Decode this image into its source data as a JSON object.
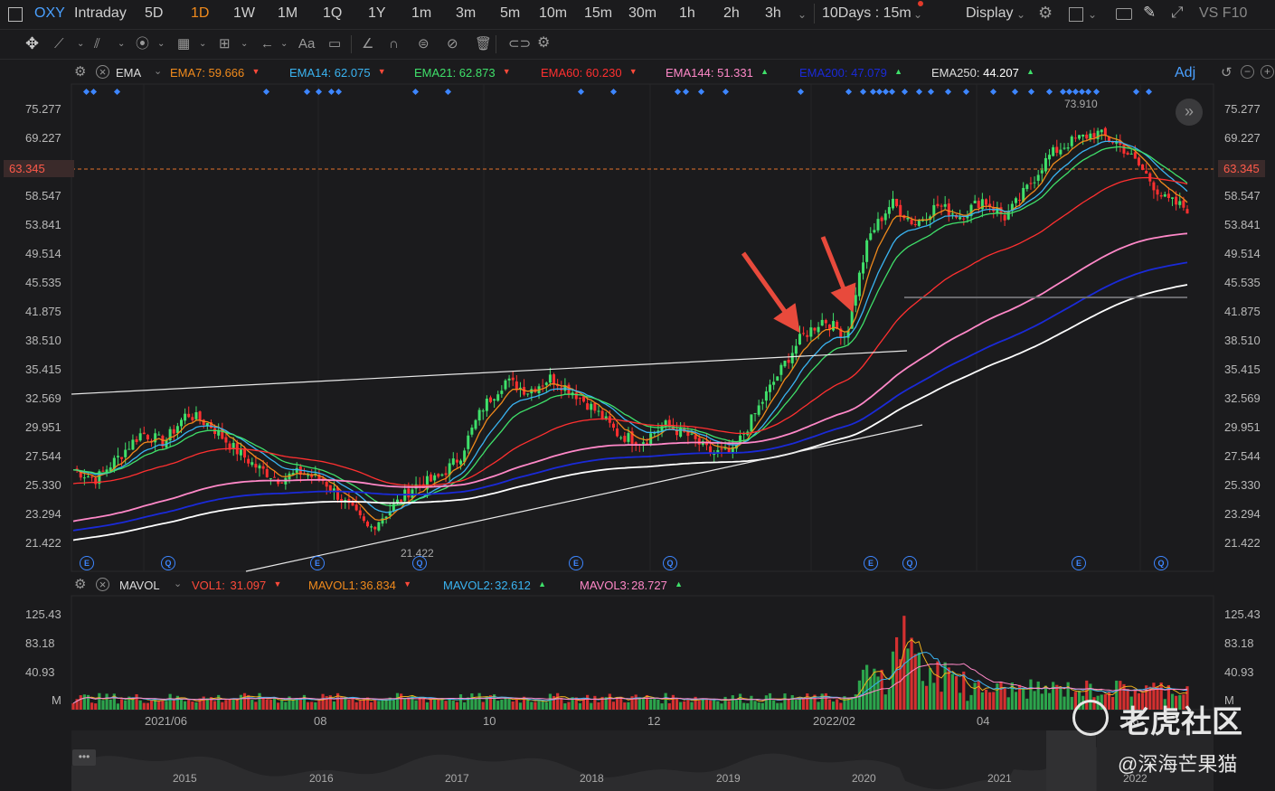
{
  "toolbar": {
    "symbol": "OXY",
    "periods": [
      "Intraday",
      "5D",
      "1D",
      "1W",
      "1M",
      "1Q",
      "1Y",
      "1m",
      "3m",
      "5m",
      "10m",
      "15m",
      "30m",
      "1h",
      "2h",
      "3h"
    ],
    "active_period": "1D",
    "range_select": "10Days : 15m",
    "display_label": "Display",
    "vs_label": "VS F10"
  },
  "ema_legend": {
    "title": "EMA",
    "items": [
      {
        "label": "EMA7:",
        "value": "59.666",
        "color": "#f08a1c",
        "dir": "down"
      },
      {
        "label": "EMA14:",
        "value": "62.075",
        "color": "#3ab4f2",
        "dir": "down"
      },
      {
        "label": "EMA21:",
        "value": "62.873",
        "color": "#3fe06a",
        "dir": "down"
      },
      {
        "label": "EMA60:",
        "value": "60.230",
        "color": "#ff3030",
        "dir": "down"
      },
      {
        "label": "EMA144:",
        "value": "51.331",
        "color": "#ff88c8",
        "dir": "up"
      },
      {
        "label": "EMA200:",
        "value": "47.079",
        "color": "#1a2ad8",
        "dir": "up"
      },
      {
        "label": "EMA250:",
        "value": "44.207",
        "color": "#ffffff",
        "dir": "up"
      }
    ],
    "adj_label": "Adj"
  },
  "price_axis": [
    "75.277",
    "69.227",
    "63.345",
    "58.547",
    "53.841",
    "49.514",
    "45.535",
    "41.875",
    "38.510",
    "35.415",
    "32.569",
    "29.951",
    "27.544",
    "25.330",
    "23.294",
    "21.422"
  ],
  "current_price": "63.345",
  "annotations": {
    "high": "73.910",
    "low": "21.422"
  },
  "vol_legend": {
    "title": "MAVOL",
    "items": [
      {
        "label": "VOL1:",
        "value": "31.097",
        "color": "#ff4a3a",
        "dir": "down"
      },
      {
        "label": "MAVOL1:",
        "value": "36.834",
        "color": "#f08a1c",
        "dir": "down"
      },
      {
        "label": "MAVOL2:",
        "value": "32.612",
        "color": "#3ab4f2",
        "dir": "up"
      },
      {
        "label": "MAVOL3:",
        "value": "28.727",
        "color": "#ff88c8",
        "dir": "up"
      }
    ]
  },
  "vol_axis": [
    "125.43",
    "83.18",
    "40.93",
    "M"
  ],
  "date_axis": [
    "2021/06",
    "08",
    "10",
    "12",
    "2022/02",
    "04",
    "06"
  ],
  "overview_axis": [
    "2015",
    "2016",
    "2017",
    "2018",
    "2019",
    "2020",
    "2021",
    "2022"
  ],
  "watermark": {
    "brand": "老虎社区",
    "user": "@深海芒果猫"
  },
  "colors": {
    "up": "#3fe06a",
    "down": "#ff3030",
    "accent": "#f08a1c",
    "marker": "#3d86ff",
    "arrow": "#e84a3c"
  },
  "chart_data": {
    "type": "line",
    "series_name": "OXY 1D",
    "ylim": [
      21.422,
      75.277
    ],
    "price_path": [
      26.5,
      25.8,
      27.5,
      29.5,
      28.7,
      31.2,
      30.2,
      28.3,
      26.8,
      25.8,
      26.3,
      25.7,
      24.0,
      22.3,
      23.7,
      25.3,
      25.8,
      27.5,
      31.7,
      34.3,
      33.3,
      34.6,
      33.2,
      31.4,
      29.3,
      28.8,
      30.2,
      29.3,
      27.9,
      27.8,
      31.2,
      34.9,
      38.8,
      41.0,
      39.0,
      52.0,
      57.5,
      54.0,
      57.0,
      55.3,
      58.0,
      55.0,
      60.0,
      66.0,
      68.8,
      70.4,
      68.0,
      63.0,
      58.0,
      56.5
    ],
    "ema_markers": [
      "E",
      "Q",
      "E",
      "Q",
      "E",
      "Q",
      "E",
      "Q",
      "E",
      "Q"
    ]
  }
}
